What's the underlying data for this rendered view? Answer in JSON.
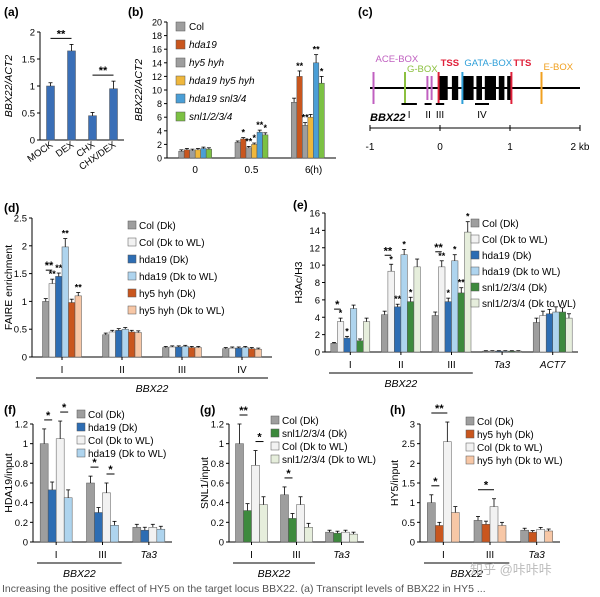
{
  "colors": {
    "col_dk": "#9e9e9e",
    "col_wl": "#f2f2f2",
    "hda19_dk": "#2d6db3",
    "hda19_wl": "#aed4ee",
    "hy5_dk": "#c9561e",
    "hy5_wl": "#f7c7a6",
    "snl_dk": "#3d8a3d",
    "snl_wl": "#e6eedc",
    "hda19_hy5": "#efb73c",
    "hda19_snl": "#4a9ed6",
    "snl_b": "#7cc143",
    "blue_bar": "#3a6fb7",
    "ace": "#c060c0",
    "gbox": "#8cc040",
    "tss": "#e0203a",
    "gata": "#2e9fd8",
    "ebox": "#f0a020"
  },
  "caption": "Increasing the positive effect of HY5 on the target locus BBX22. (a) Transcript levels of BBX22 in HY5 ...",
  "watermark": "知乎 @咔咔咔",
  "chart_data": [
    {
      "panel": "(a)",
      "type": "bar",
      "ylabel": "BBX22/ACT2",
      "ylim": [
        0,
        2
      ],
      "yticks": [
        0,
        0.5,
        1,
        1.5,
        2
      ],
      "categories": [
        "MOCK",
        "DEX",
        "CHX",
        "CHX/DEX"
      ],
      "values": [
        1.0,
        1.65,
        0.45,
        0.95
      ],
      "errors": [
        0.06,
        0.12,
        0.06,
        0.14
      ],
      "significance": [
        {
          "from": 0,
          "to": 1,
          "label": "**"
        },
        {
          "from": 2,
          "to": 3,
          "label": "**"
        }
      ]
    },
    {
      "panel": "(b)",
      "type": "bar",
      "ylabel": "BBX22/ACT2",
      "ylim": [
        0,
        20
      ],
      "yticks": [
        0,
        2,
        4,
        6,
        8,
        10,
        12,
        14,
        16,
        18,
        20
      ],
      "xlabel_unit": "(h)",
      "categories": [
        "0",
        "0.5",
        "6"
      ],
      "series": [
        {
          "name": "Col",
          "values": [
            1.0,
            2.3,
            8.2
          ],
          "errors": [
            0.2,
            0.2,
            0.6
          ],
          "stars": [
            "",
            "",
            ""
          ]
        },
        {
          "name": "hda19",
          "values": [
            1.2,
            2.8,
            12.0
          ],
          "errors": [
            0.2,
            0.2,
            0.8
          ],
          "stars": [
            "",
            "*",
            "**"
          ]
        },
        {
          "name": "hy5 hyh",
          "values": [
            1.1,
            1.5,
            4.8
          ],
          "errors": [
            0.2,
            0.2,
            0.4
          ],
          "stars": [
            "",
            "**",
            "**"
          ]
        },
        {
          "name": "hda19 hy5 hyh",
          "values": [
            1.2,
            2.0,
            6.0
          ],
          "errors": [
            0.2,
            0.2,
            0.4
          ],
          "stars": [
            "",
            "*",
            ""
          ]
        },
        {
          "name": "hda19 snl3/4",
          "values": [
            1.4,
            3.8,
            14.0
          ],
          "errors": [
            0.2,
            0.3,
            1.2
          ],
          "stars": [
            "",
            "**",
            "**"
          ]
        },
        {
          "name": "snl1/2/3/4",
          "values": [
            1.3,
            3.4,
            11.0
          ],
          "errors": [
            0.2,
            0.3,
            1.0
          ],
          "stars": [
            "",
            "*",
            "*"
          ]
        }
      ]
    },
    {
      "panel": "(c)",
      "type": "diagram",
      "gene": "BBX22",
      "scale_labels": [
        "-1",
        "0",
        "1",
        "2 kb"
      ],
      "elements": [
        "ACE-BOX",
        "G-BOX",
        "TSS",
        "GATA-BOX",
        "TTS",
        "E-BOX"
      ],
      "regions": [
        "I",
        "II",
        "III",
        "IV"
      ]
    },
    {
      "panel": "(d)",
      "type": "bar",
      "ylabel": "FAIRE enrichment",
      "ylim": [
        0,
        2.5
      ],
      "yticks": [
        0,
        0.5,
        1,
        1.5,
        2,
        2.5
      ],
      "group_label": "BBX22",
      "categories": [
        "I",
        "II",
        "III",
        "IV"
      ],
      "series": [
        {
          "name": "Col (Dk)",
          "values": [
            1.0,
            0.4,
            0.17,
            0.15
          ],
          "errors": [
            0.05,
            0.03,
            0.02,
            0.02
          ],
          "stars": [
            "",
            "",
            "",
            ""
          ]
        },
        {
          "name": "Col (Dk to WL)",
          "values": [
            1.32,
            0.45,
            0.18,
            0.16
          ],
          "errors": [
            0.08,
            0.03,
            0.02,
            0.02
          ],
          "stars": [
            "**",
            "",
            "",
            ""
          ]
        },
        {
          "name": "hda19 (Dk)",
          "values": [
            1.45,
            0.48,
            0.18,
            0.16
          ],
          "errors": [
            0.06,
            0.03,
            0.02,
            0.02
          ],
          "stars": [
            "**",
            "",
            "",
            ""
          ]
        },
        {
          "name": "hda19 (Dk to WL)",
          "values": [
            1.98,
            0.5,
            0.19,
            0.17
          ],
          "errors": [
            0.15,
            0.03,
            0.02,
            0.02
          ],
          "stars": [
            "**",
            "",
            "",
            ""
          ]
        },
        {
          "name": "hy5 hyh (Dk)",
          "values": [
            0.98,
            0.45,
            0.17,
            0.15
          ],
          "errors": [
            0.06,
            0.03,
            0.02,
            0.02
          ],
          "stars": [
            "",
            "",
            "",
            ""
          ]
        },
        {
          "name": "hy5 hyh (Dk to WL)",
          "values": [
            1.1,
            0.44,
            0.17,
            0.14
          ],
          "errors": [
            0.06,
            0.03,
            0.02,
            0.02
          ],
          "stars": [
            "**",
            "",
            "",
            ""
          ]
        }
      ],
      "significance": [
        {
          "category": 0,
          "from": 0,
          "to": 1,
          "label": "**"
        }
      ]
    },
    {
      "panel": "(e)",
      "type": "bar",
      "ylabel": "H3Ac/H3",
      "ylim": [
        0,
        16
      ],
      "yticks": [
        0,
        2,
        4,
        6,
        8,
        10,
        12,
        14,
        16
      ],
      "group_label": "BBX22",
      "categories": [
        "I",
        "II",
        "III",
        "Ta3",
        "ACT7"
      ],
      "series": [
        {
          "name": "Col (Dk)",
          "values": [
            1.0,
            4.3,
            4.2,
            0.1,
            3.4
          ],
          "errors": [
            0.1,
            0.4,
            0.4,
            0.05,
            0.5
          ],
          "stars": [
            "",
            "",
            "",
            "",
            ""
          ]
        },
        {
          "name": "Col (Dk to WL)",
          "values": [
            3.5,
            9.3,
            9.8,
            0.1,
            4.2
          ],
          "errors": [
            0.4,
            0.8,
            0.7,
            0.05,
            0.5
          ],
          "stars": [
            "*",
            "*",
            "**",
            "",
            ""
          ]
        },
        {
          "name": "hda19 (Dk)",
          "values": [
            1.6,
            5.2,
            5.8,
            0.1,
            4.4
          ],
          "errors": [
            0.2,
            0.3,
            0.4,
            0.05,
            0.5
          ],
          "stars": [
            "*",
            "**",
            "*",
            "",
            ""
          ]
        },
        {
          "name": "hda19 (Dk to WL)",
          "values": [
            5.0,
            11.2,
            10.5,
            0.1,
            4.6
          ],
          "errors": [
            0.4,
            0.6,
            0.7,
            0.05,
            0.6
          ],
          "stars": [
            "",
            "*",
            "*",
            "",
            ""
          ]
        },
        {
          "name": "snl1/2/3/4 (Dk)",
          "values": [
            1.3,
            5.8,
            6.8,
            0.1,
            4.6
          ],
          "errors": [
            0.2,
            0.5,
            0.6,
            0.05,
            0.5
          ],
          "stars": [
            "",
            "*",
            "**",
            "",
            ""
          ]
        },
        {
          "name": "snl1/2/3/4 (Dk to WL)",
          "values": [
            3.5,
            9.8,
            13.8,
            0.1,
            3.9
          ],
          "errors": [
            0.4,
            0.9,
            1.2,
            0.05,
            0.5
          ],
          "stars": [
            "",
            "",
            "*",
            "",
            ""
          ]
        }
      ],
      "significance": [
        {
          "category": 0,
          "from": 0,
          "to": 1,
          "label": "*"
        },
        {
          "category": 1,
          "from": 0,
          "to": 1,
          "label": "**"
        },
        {
          "category": 2,
          "from": 0,
          "to": 1,
          "label": "**"
        }
      ]
    },
    {
      "panel": "(f)",
      "type": "bar",
      "ylabel": "HDA19/input",
      "ylim": [
        0,
        1.2
      ],
      "yticks": [
        0,
        0.2,
        0.4,
        0.6,
        0.8,
        1,
        1.2
      ],
      "group_label": "BBX22",
      "categories": [
        "I",
        "III",
        "Ta3"
      ],
      "series": [
        {
          "name": "Col (Dk)",
          "values": [
            1.0,
            0.6,
            0.15
          ],
          "errors": [
            0.15,
            0.07,
            0.03
          ],
          "stars": [
            "",
            "",
            ""
          ]
        },
        {
          "name": "hda19 (Dk)",
          "values": [
            0.53,
            0.3,
            0.12
          ],
          "errors": [
            0.08,
            0.05,
            0.03
          ],
          "stars": [
            "",
            "",
            ""
          ]
        },
        {
          "name": "Col (Dk to WL)",
          "values": [
            1.05,
            0.5,
            0.15
          ],
          "errors": [
            0.18,
            0.1,
            0.03
          ],
          "stars": [
            "",
            "",
            ""
          ]
        },
        {
          "name": "hda19 (Dk to WL)",
          "values": [
            0.45,
            0.17,
            0.13
          ],
          "errors": [
            0.08,
            0.04,
            0.03
          ],
          "stars": [
            "",
            "",
            ""
          ]
        }
      ],
      "significance": [
        {
          "category": 0,
          "from": 0,
          "to": 1,
          "label": "*"
        },
        {
          "category": 0,
          "from": 2,
          "to": 3,
          "label": "*"
        },
        {
          "category": 1,
          "from": 0,
          "to": 1,
          "label": "*"
        },
        {
          "category": 1,
          "from": 2,
          "to": 3,
          "label": "*"
        }
      ]
    },
    {
      "panel": "(g)",
      "type": "bar",
      "ylabel": "SNL1/input",
      "ylim": [
        0,
        1.2
      ],
      "yticks": [
        0,
        0.2,
        0.4,
        0.6,
        0.8,
        1,
        1.2
      ],
      "group_label": "BBX22",
      "categories": [
        "I",
        "III",
        "Ta3"
      ],
      "series": [
        {
          "name": "Col (Dk)",
          "values": [
            1.0,
            0.48,
            0.1
          ],
          "errors": [
            0.2,
            0.08,
            0.02
          ],
          "stars": [
            "",
            "",
            ""
          ]
        },
        {
          "name": "snl1/2/3/4 (Dk)",
          "values": [
            0.32,
            0.24,
            0.09
          ],
          "errors": [
            0.07,
            0.05,
            0.02
          ],
          "stars": [
            "",
            "",
            ""
          ]
        },
        {
          "name": "Col (Dk to WL)",
          "values": [
            0.78,
            0.38,
            0.1
          ],
          "errors": [
            0.15,
            0.08,
            0.02
          ],
          "stars": [
            "",
            "",
            ""
          ]
        },
        {
          "name": "snl1/2/3/4 (Dk to WL)",
          "values": [
            0.38,
            0.15,
            0.08
          ],
          "errors": [
            0.08,
            0.04,
            0.02
          ],
          "stars": [
            "",
            "",
            ""
          ]
        }
      ],
      "significance": [
        {
          "category": 0,
          "from": 0,
          "to": 1,
          "label": "**"
        },
        {
          "category": 0,
          "from": 2,
          "to": 3,
          "label": "*"
        },
        {
          "category": 1,
          "from": 0,
          "to": 1,
          "label": "*"
        }
      ]
    },
    {
      "panel": "(h)",
      "type": "bar",
      "ylabel": "HY5/input",
      "ylim": [
        0,
        3
      ],
      "yticks": [
        0,
        0.5,
        1,
        1.5,
        2,
        2.5,
        3
      ],
      "group_label": "BBX22",
      "categories": [
        "I",
        "III",
        "Ta3"
      ],
      "series": [
        {
          "name": "Col (Dk)",
          "values": [
            1.0,
            0.55,
            0.3
          ],
          "errors": [
            0.2,
            0.1,
            0.05
          ],
          "stars": [
            "",
            "",
            ""
          ]
        },
        {
          "name": "hy5 hyh (Dk)",
          "values": [
            0.42,
            0.45,
            0.25
          ],
          "errors": [
            0.08,
            0.08,
            0.04
          ],
          "stars": [
            "",
            "",
            ""
          ]
        },
        {
          "name": "Col (Dk to WL)",
          "values": [
            2.55,
            0.9,
            0.32
          ],
          "errors": [
            0.5,
            0.2,
            0.05
          ],
          "stars": [
            "",
            "",
            ""
          ]
        },
        {
          "name": "hy5 hyh (Dk to WL)",
          "values": [
            0.75,
            0.42,
            0.28
          ],
          "errors": [
            0.15,
            0.08,
            0.05
          ],
          "stars": [
            "",
            "",
            ""
          ]
        }
      ],
      "significance": [
        {
          "category": 0,
          "from": 0,
          "to": 1,
          "label": "*"
        },
        {
          "category": 0,
          "from": 0,
          "to": 2,
          "label": "**"
        },
        {
          "category": 1,
          "from": 0,
          "to": 2,
          "label": "*"
        }
      ]
    }
  ]
}
